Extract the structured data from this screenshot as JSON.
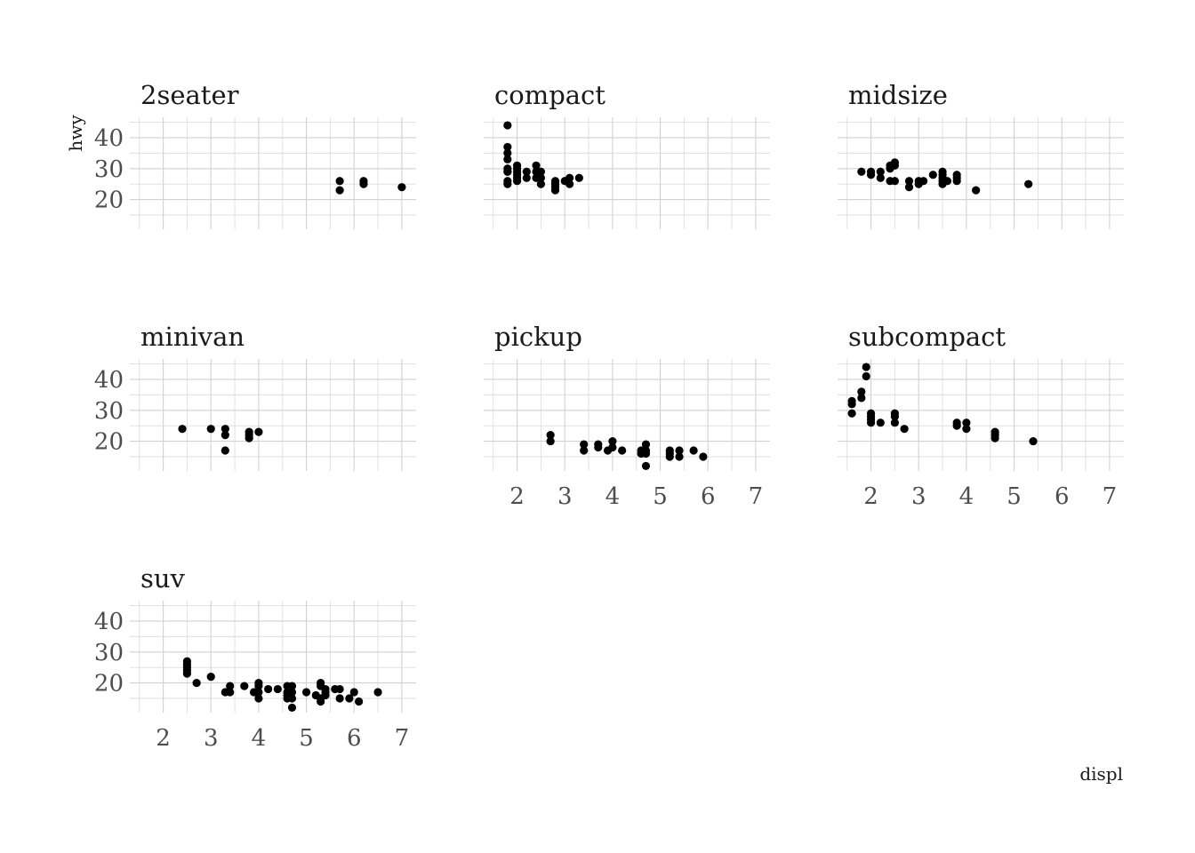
{
  "chart_data": {
    "type": "scatter",
    "facet_by": "class",
    "xlabel": "displ",
    "ylabel": "hwy",
    "xlim": [
      1.3,
      7.3
    ],
    "ylim": [
      10.4,
      46.6
    ],
    "x_ticks": [
      2,
      3,
      4,
      5,
      6,
      7
    ],
    "y_ticks": [
      20,
      30,
      40
    ],
    "grid": true,
    "point_color": "#000000",
    "panels": [
      {
        "name": "2seater",
        "points": [
          [
            5.7,
            26
          ],
          [
            5.7,
            23
          ],
          [
            6.2,
            26
          ],
          [
            6.2,
            25
          ],
          [
            7.0,
            24
          ]
        ]
      },
      {
        "name": "compact",
        "points": [
          [
            1.8,
            44
          ],
          [
            1.8,
            29
          ],
          [
            1.8,
            29
          ],
          [
            1.8,
            25
          ],
          [
            1.8,
            26
          ],
          [
            1.8,
            37
          ],
          [
            1.8,
            35
          ],
          [
            1.8,
            33
          ],
          [
            1.8,
            30
          ],
          [
            2.0,
            31
          ],
          [
            2.0,
            30
          ],
          [
            2.0,
            29
          ],
          [
            2.0,
            28
          ],
          [
            2.0,
            27
          ],
          [
            2.0,
            26
          ],
          [
            2.2,
            29
          ],
          [
            2.2,
            27
          ],
          [
            2.4,
            31
          ],
          [
            2.4,
            29
          ],
          [
            2.4,
            27
          ],
          [
            2.5,
            29
          ],
          [
            2.5,
            27
          ],
          [
            2.5,
            25
          ],
          [
            2.8,
            26
          ],
          [
            2.8,
            25
          ],
          [
            2.8,
            24
          ],
          [
            2.8,
            23
          ],
          [
            3.0,
            26
          ],
          [
            3.1,
            27
          ],
          [
            3.1,
            25
          ],
          [
            3.3,
            27
          ]
        ]
      },
      {
        "name": "midsize",
        "points": [
          [
            1.8,
            29
          ],
          [
            2.0,
            29
          ],
          [
            2.0,
            28
          ],
          [
            2.2,
            29
          ],
          [
            2.2,
            27
          ],
          [
            2.4,
            30
          ],
          [
            2.4,
            31
          ],
          [
            2.4,
            26
          ],
          [
            2.5,
            32
          ],
          [
            2.5,
            31
          ],
          [
            2.5,
            26
          ],
          [
            2.8,
            26
          ],
          [
            2.8,
            24
          ],
          [
            3.0,
            26
          ],
          [
            3.0,
            25
          ],
          [
            3.1,
            26
          ],
          [
            3.3,
            28
          ],
          [
            3.5,
            29
          ],
          [
            3.5,
            28
          ],
          [
            3.5,
            27
          ],
          [
            3.5,
            26
          ],
          [
            3.5,
            25
          ],
          [
            3.6,
            26
          ],
          [
            3.8,
            28
          ],
          [
            3.8,
            27
          ],
          [
            3.8,
            26
          ],
          [
            4.2,
            23
          ],
          [
            5.3,
            25
          ]
        ]
      },
      {
        "name": "minivan",
        "points": [
          [
            2.4,
            24
          ],
          [
            3.0,
            24
          ],
          [
            3.3,
            24
          ],
          [
            3.3,
            22
          ],
          [
            3.3,
            17
          ],
          [
            3.8,
            23
          ],
          [
            3.8,
            22
          ],
          [
            3.8,
            21
          ],
          [
            4.0,
            23
          ]
        ]
      },
      {
        "name": "pickup",
        "points": [
          [
            2.7,
            22
          ],
          [
            2.7,
            20
          ],
          [
            3.4,
            19
          ],
          [
            3.4,
            17
          ],
          [
            3.7,
            19
          ],
          [
            3.7,
            18
          ],
          [
            3.9,
            17
          ],
          [
            4.0,
            20
          ],
          [
            4.0,
            18
          ],
          [
            4.2,
            17
          ],
          [
            4.6,
            17
          ],
          [
            4.6,
            16
          ],
          [
            4.7,
            19
          ],
          [
            4.7,
            17
          ],
          [
            4.7,
            16
          ],
          [
            4.7,
            12
          ],
          [
            5.2,
            17
          ],
          [
            5.2,
            16
          ],
          [
            5.2,
            15
          ],
          [
            5.4,
            17
          ],
          [
            5.4,
            15
          ],
          [
            5.7,
            17
          ],
          [
            5.9,
            15
          ]
        ]
      },
      {
        "name": "subcompact",
        "points": [
          [
            1.6,
            33
          ],
          [
            1.6,
            32
          ],
          [
            1.6,
            29
          ],
          [
            1.8,
            36
          ],
          [
            1.8,
            34
          ],
          [
            1.9,
            44
          ],
          [
            1.9,
            41
          ],
          [
            2.0,
            29
          ],
          [
            2.0,
            28
          ],
          [
            2.0,
            27
          ],
          [
            2.0,
            26
          ],
          [
            2.2,
            26
          ],
          [
            2.5,
            29
          ],
          [
            2.5,
            28
          ],
          [
            2.5,
            26
          ],
          [
            2.7,
            24
          ],
          [
            3.8,
            26
          ],
          [
            3.8,
            25
          ],
          [
            4.0,
            26
          ],
          [
            4.0,
            24
          ],
          [
            4.6,
            23
          ],
          [
            4.6,
            22
          ],
          [
            4.6,
            21
          ],
          [
            5.4,
            20
          ]
        ]
      },
      {
        "name": "suv",
        "points": [
          [
            2.5,
            27
          ],
          [
            2.5,
            26
          ],
          [
            2.5,
            25
          ],
          [
            2.5,
            24
          ],
          [
            2.5,
            23
          ],
          [
            2.7,
            20
          ],
          [
            3.0,
            22
          ],
          [
            3.3,
            17
          ],
          [
            3.4,
            19
          ],
          [
            3.4,
            17
          ],
          [
            3.7,
            19
          ],
          [
            3.9,
            17
          ],
          [
            4.0,
            20
          ],
          [
            4.0,
            19
          ],
          [
            4.0,
            17
          ],
          [
            4.0,
            15
          ],
          [
            4.2,
            18
          ],
          [
            4.4,
            18
          ],
          [
            4.6,
            19
          ],
          [
            4.6,
            17
          ],
          [
            4.6,
            16
          ],
          [
            4.6,
            15
          ],
          [
            4.7,
            19
          ],
          [
            4.7,
            17
          ],
          [
            4.7,
            15
          ],
          [
            4.7,
            12
          ],
          [
            5.0,
            17
          ],
          [
            5.2,
            16
          ],
          [
            5.3,
            20
          ],
          [
            5.3,
            19
          ],
          [
            5.3,
            15
          ],
          [
            5.3,
            14
          ],
          [
            5.4,
            18
          ],
          [
            5.4,
            17
          ],
          [
            5.4,
            16
          ],
          [
            5.6,
            18
          ],
          [
            5.7,
            18
          ],
          [
            5.7,
            15
          ],
          [
            5.9,
            15
          ],
          [
            6.0,
            17
          ],
          [
            6.1,
            14
          ],
          [
            6.5,
            17
          ]
        ]
      }
    ]
  }
}
